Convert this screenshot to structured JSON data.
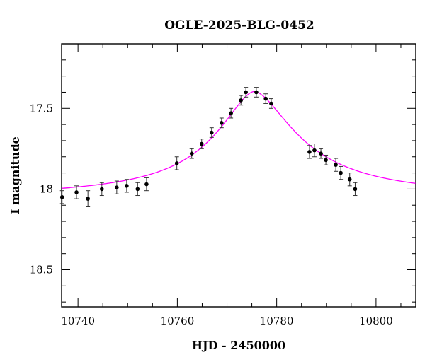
{
  "chart_data": {
    "type": "scatter",
    "title": "OGLE-2025-BLG-0452",
    "xlabel": "HJD - 2450000",
    "ylabel": "I magnitude",
    "xlim": [
      10736.7,
      10808.0
    ],
    "ylim": [
      18.73,
      17.1
    ],
    "y_inverted": true,
    "x_ticks": [
      10740,
      10760,
      10780,
      10800
    ],
    "x_tick_labels": [
      "10740",
      "10760",
      "10780",
      "10800"
    ],
    "y_ticks": [
      17.5,
      18,
      18.5
    ],
    "y_tick_labels": [
      "17.5",
      "18",
      "18.5"
    ],
    "grid": false,
    "colors": {
      "model": "#ff00ff",
      "points": "#000000",
      "errorbars": "#333333"
    },
    "series": [
      {
        "kind": "points_with_errorbars",
        "x": [
          10736.8,
          10739.7,
          10742.0,
          10744.8,
          10747.8,
          10749.8,
          10752.0,
          10753.8,
          10759.9,
          10762.9,
          10764.9,
          10766.9,
          10768.9,
          10770.8,
          10772.8,
          10773.8,
          10775.9,
          10777.8,
          10778.9,
          10786.6,
          10787.6,
          10788.9,
          10789.9,
          10791.9,
          10792.9,
          10794.7,
          10795.8
        ],
        "y": [
          18.05,
          18.02,
          18.06,
          18.0,
          17.99,
          17.98,
          18.0,
          17.97,
          17.84,
          17.78,
          17.72,
          17.65,
          17.59,
          17.53,
          17.45,
          17.4,
          17.4,
          17.44,
          17.47,
          17.77,
          17.76,
          17.78,
          17.82,
          17.85,
          17.9,
          17.94,
          18.0
        ],
        "err": [
          0.04,
          0.04,
          0.05,
          0.04,
          0.04,
          0.04,
          0.04,
          0.04,
          0.04,
          0.03,
          0.03,
          0.03,
          0.03,
          0.03,
          0.03,
          0.03,
          0.03,
          0.03,
          0.03,
          0.04,
          0.04,
          0.03,
          0.03,
          0.04,
          0.04,
          0.04,
          0.04
        ]
      },
      {
        "kind": "model_curve",
        "baseline_mag": 18.055,
        "peak_mag": 17.395,
        "t0": 10775.5,
        "tE_rise": 10.0,
        "tE_fall": 11.0,
        "shape_exponent": 1.7
      }
    ]
  }
}
